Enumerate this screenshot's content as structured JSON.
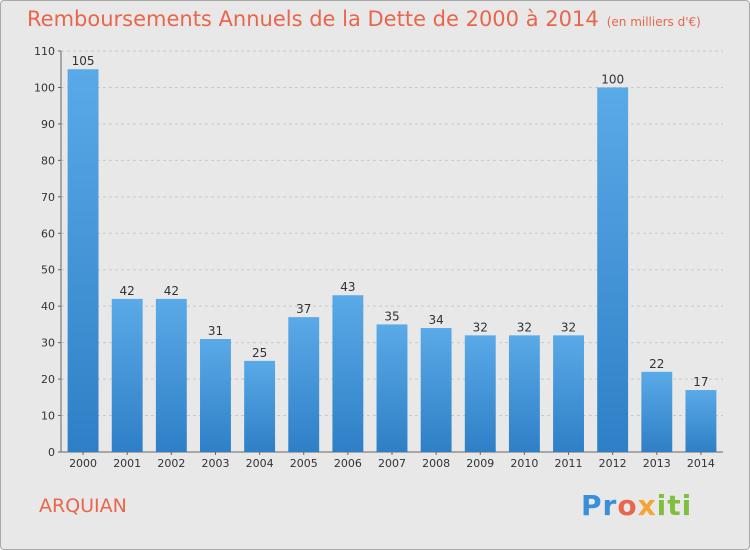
{
  "header": {
    "title": "Remboursements Annuels de la Dette de 2000 à 2014",
    "unit": "(en milliers d'€)"
  },
  "footer": {
    "commune": "ARQUIAN",
    "logo_parts": [
      "Pr",
      "o",
      "x",
      "iti"
    ]
  },
  "colors": {
    "title": "#e8664b",
    "bar_light": "#5aaae8",
    "bar_dark": "#2e7fc6",
    "background": "#e8e8e8",
    "grid": "#c9c9c9"
  },
  "chart_data": {
    "type": "bar",
    "categories": [
      "2000",
      "2001",
      "2002",
      "2003",
      "2004",
      "2005",
      "2006",
      "2007",
      "2008",
      "2009",
      "2010",
      "2011",
      "2012",
      "2013",
      "2014"
    ],
    "values": [
      105,
      42,
      42,
      31,
      25,
      37,
      43,
      35,
      34,
      32,
      32,
      32,
      100,
      22,
      17
    ],
    "ylim": [
      0,
      110
    ],
    "yticks": [
      0,
      10,
      20,
      30,
      40,
      50,
      60,
      70,
      80,
      90,
      100,
      110
    ],
    "grid": "horizontal dashed",
    "data_labels": true
  }
}
